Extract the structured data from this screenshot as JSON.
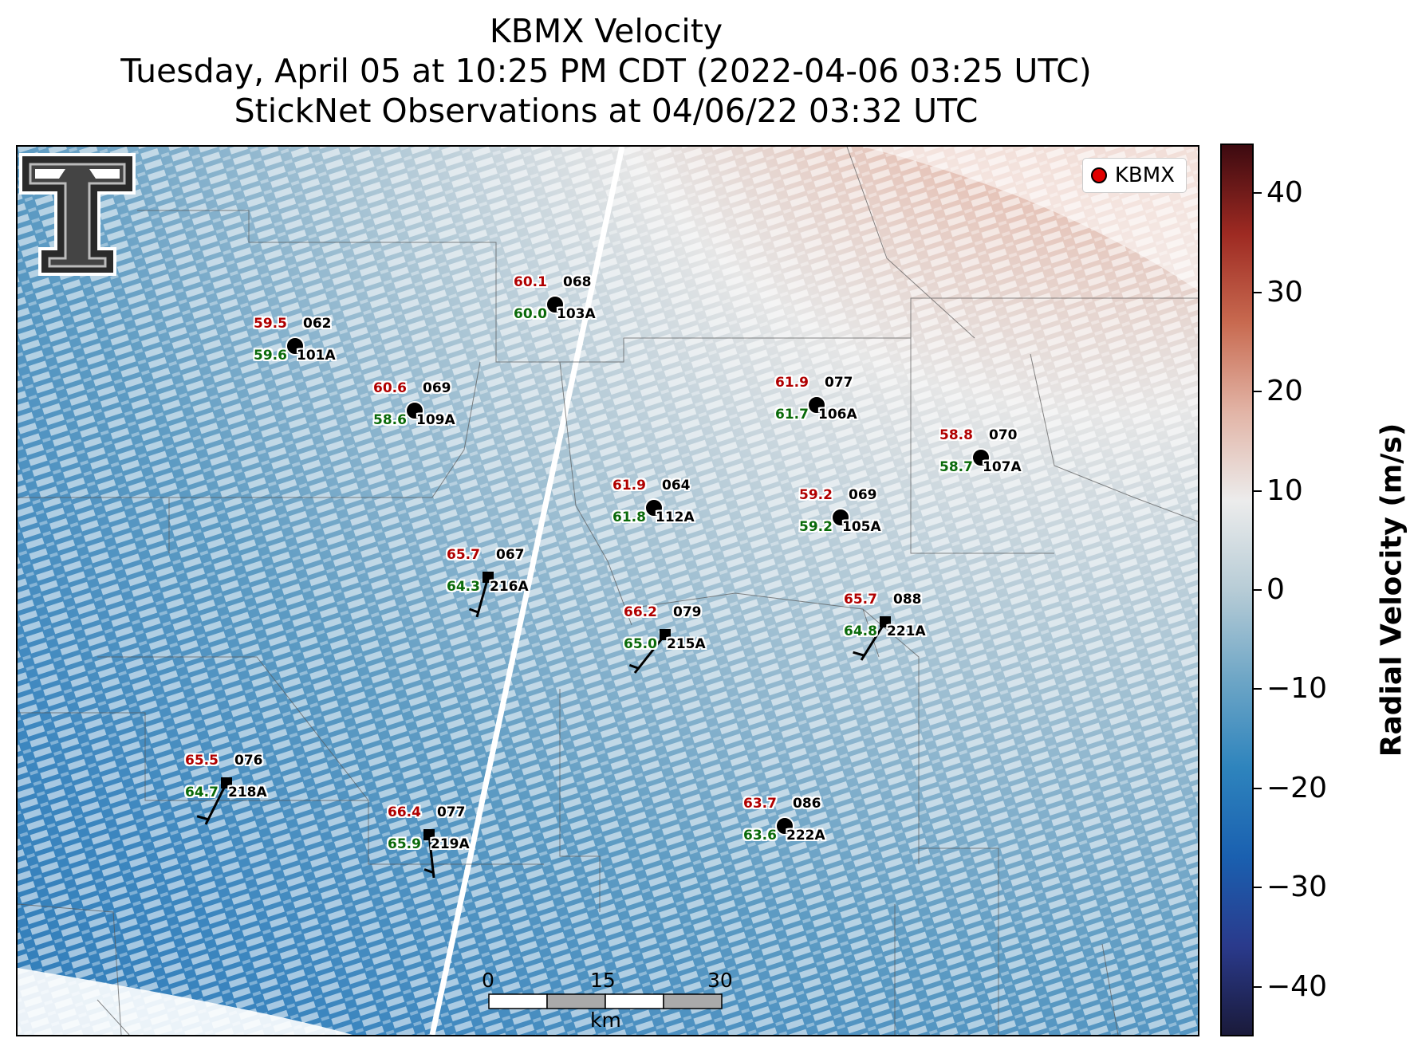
{
  "title": {
    "line1": "KBMX Velocity",
    "line2": "Tuesday, April 05 at 10:25 PM CDT (2022-04-06 03:25 UTC)",
    "line3": "StickNet Observations at 04/06/22 03:32 UTC"
  },
  "legend": {
    "label": "KBMX",
    "marker_color": "#e00000"
  },
  "colorbar": {
    "label": "Radial Velocity (m/s)",
    "range": [
      -45,
      45
    ],
    "ticks": [
      "40",
      "30",
      "20",
      "10",
      "0",
      "−10",
      "−20",
      "−30",
      "−40"
    ],
    "tick_values": [
      40,
      30,
      20,
      10,
      0,
      -10,
      -20,
      -30,
      -40
    ],
    "colors": [
      "#1a1a3a",
      "#2a3a8c",
      "#1a60b0",
      "#2e84bd",
      "#6ea6c6",
      "#b7ccd6",
      "#ececec",
      "#e2b4a6",
      "#c86a50",
      "#9e2a22",
      "#3d0a10"
    ]
  },
  "scalebar": {
    "labels": [
      "0",
      "15",
      "30"
    ],
    "unit": "km"
  },
  "stations": [
    {
      "id": "101A",
      "temp": "59.5",
      "dew": "59.6",
      "dir": "062",
      "type": "circle"
    },
    {
      "id": "109A",
      "temp": "60.6",
      "dew": "58.6",
      "dir": "069",
      "type": "circle"
    },
    {
      "id": "103A",
      "temp": "60.1",
      "dew": "60.0",
      "dir": "068",
      "type": "circle"
    },
    {
      "id": "106A",
      "temp": "61.9",
      "dew": "61.7",
      "dir": "077",
      "type": "circle"
    },
    {
      "id": "107A",
      "temp": "58.8",
      "dew": "58.7",
      "dir": "070",
      "type": "circle"
    },
    {
      "id": "112A",
      "temp": "61.9",
      "dew": "61.8",
      "dir": "064",
      "type": "circle"
    },
    {
      "id": "105A",
      "temp": "59.2",
      "dew": "59.2",
      "dir": "069",
      "type": "circle"
    },
    {
      "id": "216A",
      "temp": "65.7",
      "dew": "64.3",
      "dir": "067",
      "type": "square"
    },
    {
      "id": "215A",
      "temp": "66.2",
      "dew": "65.0",
      "dir": "079",
      "type": "square"
    },
    {
      "id": "221A",
      "temp": "65.7",
      "dew": "64.8",
      "dir": "088",
      "type": "square"
    },
    {
      "id": "218A",
      "temp": "65.5",
      "dew": "64.7",
      "dir": "076",
      "type": "square"
    },
    {
      "id": "219A",
      "temp": "66.4",
      "dew": "65.9",
      "dir": "077",
      "type": "square"
    },
    {
      "id": "222A",
      "temp": "63.7",
      "dew": "63.6",
      "dir": "086",
      "type": "circle"
    }
  ]
}
